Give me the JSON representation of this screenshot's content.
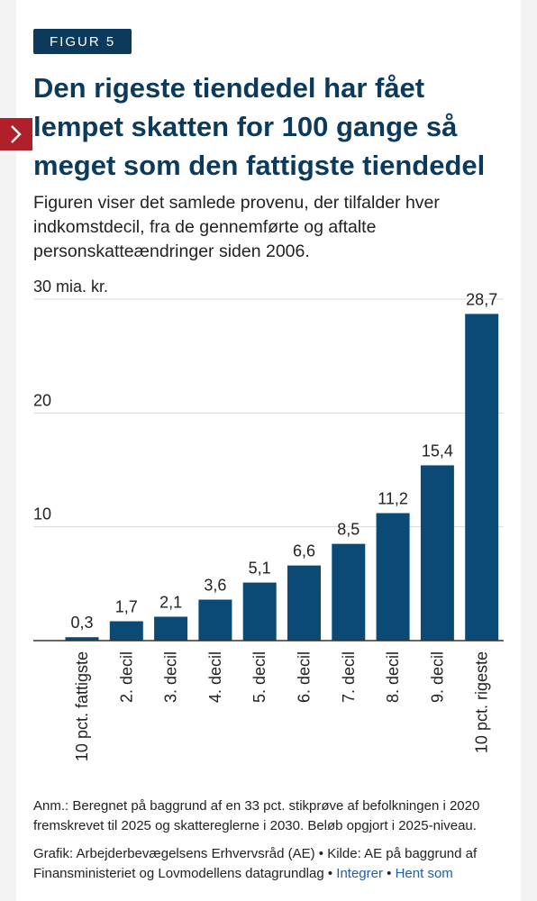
{
  "badge": "FIGUR 5",
  "title": "Den rigeste tiendedel har fået lempet skatten for 100 gange så meget som den fattigste tiendedel",
  "subtitle": "Figuren viser det samlede provenu, der tilfalder hver indkomstdecil, fra de gennemførte og aftalte personskatteændringer siden 2006.",
  "colors": {
    "bar": "#0b4a75",
    "heading": "#0b3a5c",
    "badge": "#0b3a5c",
    "marker": "#b0202a",
    "link": "#1d5fae"
  },
  "icons": {
    "side_marker": "chevron-right-icon"
  },
  "chart_data": {
    "type": "bar",
    "categories": [
      "10 pct. fattigste",
      "2. decil",
      "3. decil",
      "4. decil",
      "5. decil",
      "6. decil",
      "7. decil",
      "8. decil",
      "9. decil",
      "10 pct. rigeste"
    ],
    "values": [
      0.3,
      1.7,
      2.1,
      3.6,
      5.1,
      6.6,
      8.5,
      11.2,
      15.4,
      28.7
    ],
    "value_labels": [
      "0,3",
      "1,7",
      "2,1",
      "3,6",
      "5,1",
      "6,6",
      "8,5",
      "11,2",
      "15,4",
      "28,7"
    ],
    "y_ticks": [
      {
        "value": 10,
        "label": "10"
      },
      {
        "value": 20,
        "label": "20"
      },
      {
        "value": 30,
        "label": "30 mia. kr."
      }
    ],
    "ylim": [
      0,
      30
    ],
    "grid": true,
    "legend": "none"
  },
  "footer": {
    "note": "Anm.: Beregnet på baggrund af en 33 pct. stikprøve af befolkningen i 2020 fremskrevet til 2025 og skattereglerne i 2030. Beløb opgjort i 2025-niveau.",
    "credit": "Grafik: Arbejderbevægelsens Erhvervsråd (AE) • Kilde: AE på baggrund af Finansministeriet og Lovmodellens datagrundlag •",
    "separator": "•",
    "link_integrate": "Integrer",
    "link_download": "Hent som"
  }
}
